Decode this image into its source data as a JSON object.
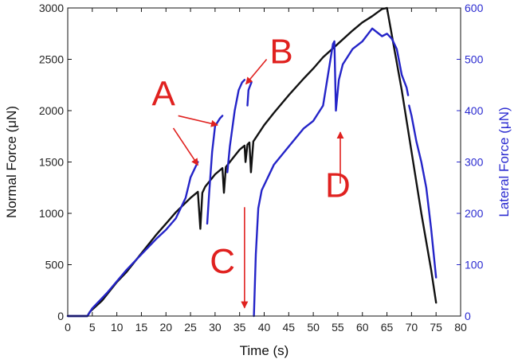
{
  "chart_data": {
    "type": "line",
    "xlabel": "Time (s)",
    "ylabel_left": "Normal Force (μN)",
    "ylabel_right": "Lateral Force (μN)",
    "xlim": [
      0,
      80
    ],
    "ylim_left": [
      0,
      3000
    ],
    "ylim_right": [
      0,
      600
    ],
    "x_ticks": [
      0,
      5,
      10,
      15,
      20,
      25,
      30,
      35,
      40,
      45,
      50,
      55,
      60,
      65,
      70,
      75,
      80
    ],
    "y_ticks_left": [
      0,
      500,
      1000,
      1500,
      2000,
      2500,
      3000
    ],
    "y_ticks_right": [
      0,
      100,
      200,
      300,
      400,
      500,
      600
    ],
    "grid": false,
    "colors": {
      "normal": "#111111",
      "lateral": "#2424c8",
      "annotation": "#e0211f",
      "right_axis": "#2a2ad0"
    },
    "series": [
      {
        "axis": "left",
        "color": "#111111",
        "points": [
          [
            0,
            0
          ],
          [
            4,
            0
          ],
          [
            4.5,
            40
          ],
          [
            7,
            150
          ],
          [
            10,
            330
          ],
          [
            12,
            430
          ],
          [
            15,
            610
          ],
          [
            18,
            790
          ],
          [
            20,
            900
          ],
          [
            22,
            1010
          ],
          [
            25,
            1150
          ],
          [
            26.5,
            1210
          ],
          [
            27,
            850
          ],
          [
            27.4,
            1200
          ],
          [
            28,
            1260
          ],
          [
            30,
            1380
          ],
          [
            31.5,
            1440
          ],
          [
            31.8,
            1200
          ],
          [
            32.2,
            1450
          ],
          [
            33,
            1500
          ],
          [
            34,
            1560
          ],
          [
            35,
            1620
          ],
          [
            35.5,
            1640
          ],
          [
            36,
            1660
          ],
          [
            36.2,
            1500
          ],
          [
            36.6,
            1670
          ],
          [
            37,
            1690
          ],
          [
            37.3,
            1400
          ],
          [
            37.8,
            1700
          ],
          [
            40,
            1860
          ],
          [
            42,
            1980
          ],
          [
            45,
            2150
          ],
          [
            48,
            2310
          ],
          [
            50,
            2410
          ],
          [
            52,
            2520
          ],
          [
            55,
            2650
          ],
          [
            58,
            2780
          ],
          [
            60,
            2860
          ],
          [
            62,
            2920
          ],
          [
            64,
            2990
          ],
          [
            65,
            3000
          ],
          [
            66.5,
            2600
          ],
          [
            68,
            2200
          ],
          [
            70,
            1600
          ],
          [
            72,
            1000
          ],
          [
            74,
            450
          ],
          [
            75,
            130
          ]
        ]
      },
      {
        "axis": "right",
        "color": "#2424c8",
        "segments": [
          [
            [
              0,
              0
            ],
            [
              4,
              0
            ],
            [
              5,
              15
            ],
            [
              8,
              45
            ],
            [
              12,
              90
            ],
            [
              15,
              120
            ],
            [
              18,
              150
            ],
            [
              20,
              168
            ],
            [
              22,
              190
            ],
            [
              24,
              230
            ],
            [
              25,
              270
            ],
            [
              26,
              290
            ],
            [
              26.5,
              300
            ]
          ],
          [
            [
              28.4,
              180
            ],
            [
              28.8,
              240
            ],
            [
              29.4,
              320
            ],
            [
              30,
              370
            ],
            [
              31,
              385
            ],
            [
              31.5,
              390
            ]
          ],
          [
            [
              32.5,
              280
            ],
            [
              33,
              330
            ],
            [
              34,
              400
            ],
            [
              34.8,
              440
            ],
            [
              35.5,
              455
            ],
            [
              36,
              460
            ]
          ],
          [
            [
              36.6,
              410
            ],
            [
              36.8,
              440
            ],
            [
              37.2,
              450
            ],
            [
              37.4,
              455
            ]
          ],
          [
            [
              37.9,
              0
            ],
            [
              38.3,
              120
            ],
            [
              38.8,
              210
            ],
            [
              39.5,
              245
            ],
            [
              42,
              295
            ],
            [
              45,
              330
            ],
            [
              48,
              365
            ],
            [
              50,
              380
            ],
            [
              52,
              410
            ],
            [
              53.5,
              500
            ],
            [
              54,
              530
            ],
            [
              54.3,
              535
            ],
            [
              54.6,
              400
            ],
            [
              55.2,
              460
            ],
            [
              56,
              490
            ],
            [
              58,
              520
            ],
            [
              60,
              535
            ],
            [
              62,
              560
            ],
            [
              64,
              545
            ],
            [
              65,
              550
            ],
            [
              66,
              540
            ],
            [
              67,
              520
            ],
            [
              68,
              470
            ],
            [
              69,
              445
            ],
            [
              69.3,
              430
            ]
          ],
          [
            [
              69.5,
              410
            ],
            [
              70,
              390
            ],
            [
              71,
              340
            ],
            [
              72,
              300
            ],
            [
              73,
              250
            ],
            [
              74,
              170
            ],
            [
              75,
              75
            ]
          ]
        ]
      }
    ],
    "annotations": [
      {
        "label": "A",
        "text_at": [
          19.5,
          2050
        ],
        "arrows": [
          [
            [
              22.5,
              1950
            ],
            [
              30.5,
              1860
            ]
          ],
          [
            [
              21.5,
              1830
            ],
            [
              26.5,
              1470
            ]
          ]
        ]
      },
      {
        "label": "B",
        "text_at": [
          43.5,
          2460
        ],
        "arrows": [
          [
            [
              40.5,
              2500
            ],
            [
              36.3,
              2260
            ]
          ]
        ]
      },
      {
        "label": "C",
        "text_at": [
          31.5,
          420
        ],
        "arrows": [
          [
            [
              36,
              1060
            ],
            [
              36,
              80
            ]
          ]
        ]
      },
      {
        "label": "D",
        "text_at": [
          55,
          1160
        ],
        "arrows": [
          [
            [
              55.5,
              1290
            ],
            [
              55.5,
              1790
            ]
          ]
        ]
      }
    ]
  }
}
